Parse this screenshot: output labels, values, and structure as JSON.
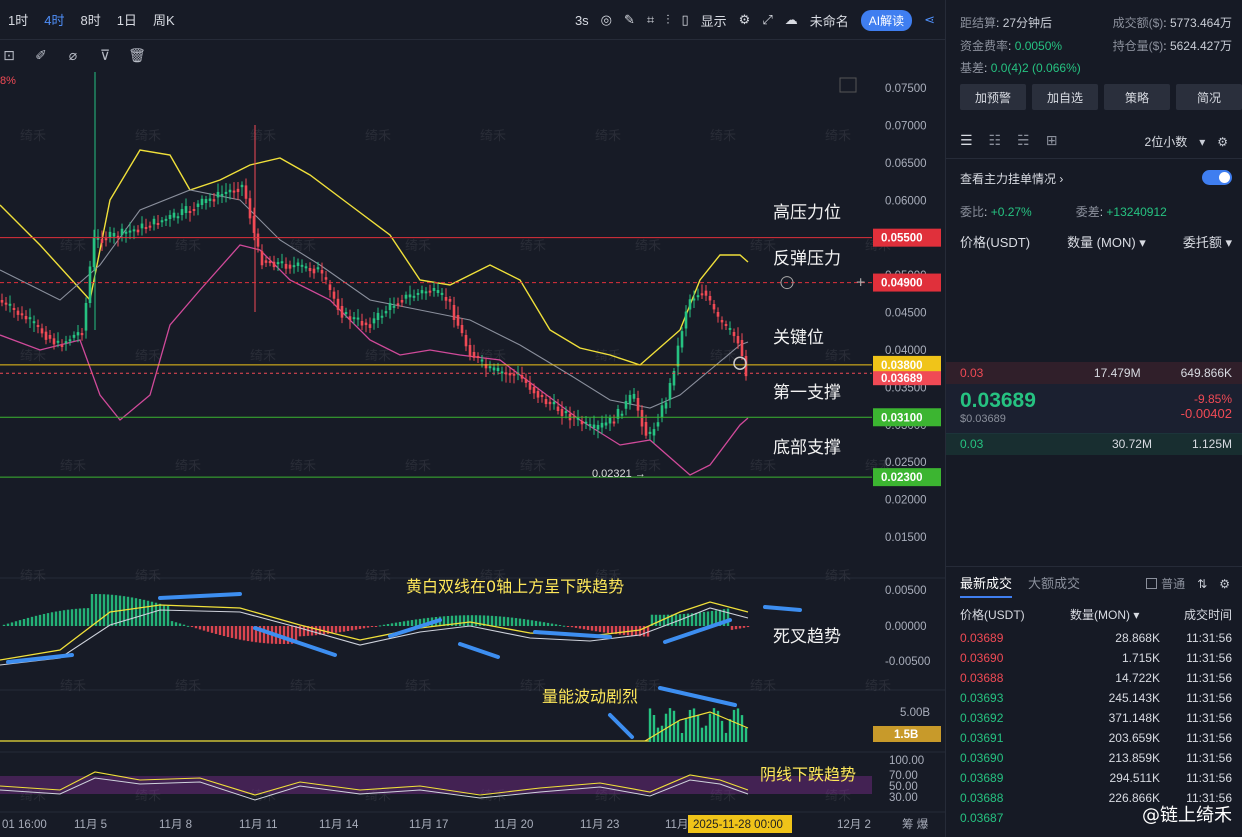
{
  "toolbar": {
    "timeframes": [
      "1时",
      "4时",
      "8时",
      "1日",
      "周K"
    ],
    "active_index": 1,
    "interval": "3s",
    "display_label": "显示",
    "template_name": "未命名",
    "ai_label": "AI解读"
  },
  "chart": {
    "pct_label": "8%",
    "price_axis": [
      "0.07500",
      "0.07000",
      "0.06500",
      "0.06000",
      "0.05000",
      "0.04500",
      "0.04000",
      "0.03500",
      "0.03000",
      "0.02500",
      "0.02000",
      "0.01500"
    ],
    "levels": [
      {
        "name": "高压力位",
        "price": "0.05500",
        "color": "#e0303b"
      },
      {
        "name": "反弹压力",
        "price": "0.04900",
        "color": "#e0303b"
      },
      {
        "name": "关键位",
        "price": "0.03800",
        "color": "#f0c419"
      },
      {
        "name": "第一支撑",
        "price": "0.03100",
        "color": "#3cb531"
      },
      {
        "name": "底部支撑",
        "price": "0.02300",
        "color": "#3cb531"
      }
    ],
    "current_price_tag": "0.03689",
    "low_label": "0.02321",
    "macd_axis": [
      "0.00500",
      "0.00000",
      "-0.00500"
    ],
    "macd_note": "黄白双线在0轴上方呈下跌趋势",
    "macd_cross": "死叉趋势",
    "volume_note": "量能波动剧烈",
    "volume_axis": "5.00B",
    "volume_tag": "1.5B",
    "rsi_axis": [
      "100.00",
      "70.00",
      "50.00",
      "30.00"
    ],
    "rsi_note": "阴线下跌趋势",
    "date_axis": [
      "01 16:00",
      "11月 5",
      "11月 8",
      "11月 11",
      "11月 14",
      "11月 17",
      "11月 20",
      "11月 23",
      "11月",
      "12月 2"
    ],
    "cursor_date": "2025-11-28 00:00",
    "watermark": "绮禾"
  },
  "sidebar": {
    "settle_label": "距结算",
    "settle_val": "27分钟后",
    "turnover_label": "成交额($)",
    "turnover_val": "5773.464万",
    "funding_label": "资金费率",
    "funding_val": "0.0050%",
    "oi_label": "持仓量($)",
    "oi_val": "5624.427万",
    "basis_label": "基差",
    "basis_val": "0.0(4)2 (0.066%)",
    "buttons": [
      "加预警",
      "加自选",
      "策略",
      "简况"
    ],
    "decimals": "2位小数",
    "orders_title": "查看主力挂单情况",
    "ratio_label": "委比",
    "ratio_val": "+0.27%",
    "diff_label": "委差",
    "diff_val": "+13240912",
    "col_price": "价格(USDT)",
    "col_qty": "数量 (MON)",
    "col_total": "委托额",
    "ask": {
      "price": "0.03",
      "qty": "17.479M",
      "total": "649.866K"
    },
    "last_price": "0.03689",
    "last_usd": "$0.03689",
    "change_pct": "-9.85%",
    "change_abs": "-0.00402",
    "bid": {
      "price": "0.03",
      "qty": "30.72M",
      "total": "1.125M"
    },
    "tab_latest": "最新成交",
    "tab_big": "大额成交",
    "normal_label": "普通",
    "trade_cols": [
      "价格(USDT)",
      "数量(MON)",
      "成交时间"
    ],
    "trades": [
      {
        "p": "0.03689",
        "q": "28.868K",
        "t": "11:31:56",
        "side": "sell"
      },
      {
        "p": "0.03690",
        "q": "1.715K",
        "t": "11:31:56",
        "side": "sell"
      },
      {
        "p": "0.03688",
        "q": "14.722K",
        "t": "11:31:56",
        "side": "sell"
      },
      {
        "p": "0.03693",
        "q": "245.143K",
        "t": "11:31:56",
        "side": "buy"
      },
      {
        "p": "0.03692",
        "q": "371.148K",
        "t": "11:31:56",
        "side": "buy"
      },
      {
        "p": "0.03691",
        "q": "203.659K",
        "t": "11:31:56",
        "side": "buy"
      },
      {
        "p": "0.03690",
        "q": "213.859K",
        "t": "11:31:56",
        "side": "buy"
      },
      {
        "p": "0.03689",
        "q": "294.511K",
        "t": "11:31:56",
        "side": "buy"
      },
      {
        "p": "0.03688",
        "q": "226.866K",
        "t": "11:31:56",
        "side": "buy"
      },
      {
        "p": "0.03687",
        "q": "",
        "t": "",
        "side": "buy"
      }
    ],
    "footer_watermark": "@链上绮禾"
  }
}
